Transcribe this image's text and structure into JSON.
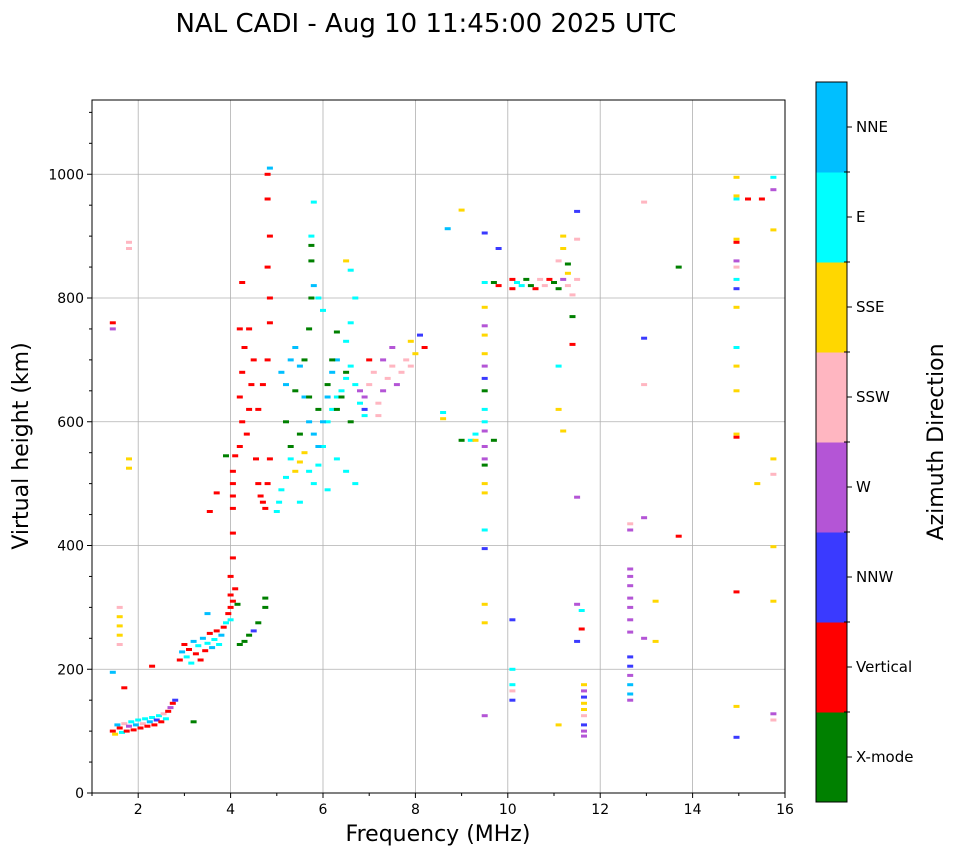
{
  "chart_data": {
    "type": "scatter",
    "title": "NAL CADI - Aug 10 11:45:00 2025 UTC",
    "xlabel": "Frequency (MHz)",
    "ylabel": "Virtual height (km)",
    "xlim": [
      1,
      16
    ],
    "ylim": [
      0,
      1120
    ],
    "xticks": [
      2,
      4,
      6,
      8,
      10,
      12,
      14,
      16
    ],
    "yticks": [
      0,
      200,
      400,
      600,
      800,
      1000
    ],
    "grid": true,
    "colorbar": {
      "label": "Azimuth Direction",
      "categories": [
        {
          "name": "X-mode",
          "color": "#008000"
        },
        {
          "name": "Vertical",
          "color": "#ff0000"
        },
        {
          "name": "NNW",
          "color": "#3a3aff"
        },
        {
          "name": "W",
          "color": "#b455d6"
        },
        {
          "name": "SSW",
          "color": "#ffb6c1"
        },
        {
          "name": "SSE",
          "color": "#ffd700"
        },
        {
          "name": "E",
          "color": "#00ffff"
        },
        {
          "name": "NNE",
          "color": "#00bfff"
        }
      ]
    },
    "points": [
      [
        1.45,
        100,
        1
      ],
      [
        1.5,
        95,
        5
      ],
      [
        1.55,
        110,
        7
      ],
      [
        1.6,
        105,
        1
      ],
      [
        1.65,
        98,
        6
      ],
      [
        1.7,
        112,
        4
      ],
      [
        1.75,
        100,
        1
      ],
      [
        1.8,
        108,
        3
      ],
      [
        1.85,
        115,
        6
      ],
      [
        1.9,
        102,
        1
      ],
      [
        1.95,
        110,
        7
      ],
      [
        2.0,
        118,
        6
      ],
      [
        2.05,
        105,
        1
      ],
      [
        2.1,
        112,
        4
      ],
      [
        2.15,
        120,
        6
      ],
      [
        2.2,
        108,
        1
      ],
      [
        2.25,
        115,
        7
      ],
      [
        2.3,
        122,
        6
      ],
      [
        2.35,
        110,
        1
      ],
      [
        2.4,
        118,
        2
      ],
      [
        2.45,
        125,
        6
      ],
      [
        2.5,
        115,
        1
      ],
      [
        2.55,
        128,
        4
      ],
      [
        2.6,
        120,
        6
      ],
      [
        2.65,
        132,
        1
      ],
      [
        2.7,
        138,
        3
      ],
      [
        2.75,
        145,
        1
      ],
      [
        2.8,
        150,
        2
      ],
      [
        1.45,
        760,
        1
      ],
      [
        1.45,
        750,
        3
      ],
      [
        1.45,
        195,
        7
      ],
      [
        1.6,
        255,
        5
      ],
      [
        1.6,
        270,
        5
      ],
      [
        1.6,
        285,
        5
      ],
      [
        1.6,
        240,
        4
      ],
      [
        1.6,
        300,
        4
      ],
      [
        1.8,
        540,
        5
      ],
      [
        1.8,
        525,
        5
      ],
      [
        1.8,
        890,
        4
      ],
      [
        1.8,
        880,
        4
      ],
      [
        1.7,
        170,
        1
      ],
      [
        2.3,
        205,
        1
      ],
      [
        3.2,
        115,
        0
      ],
      [
        2.9,
        215,
        1
      ],
      [
        2.95,
        228,
        7
      ],
      [
        3.0,
        240,
        1
      ],
      [
        3.05,
        220,
        6
      ],
      [
        3.1,
        232,
        1
      ],
      [
        3.15,
        210,
        6
      ],
      [
        3.2,
        245,
        7
      ],
      [
        3.25,
        225,
        1
      ],
      [
        3.3,
        238,
        6
      ],
      [
        3.35,
        215,
        1
      ],
      [
        3.4,
        250,
        7
      ],
      [
        3.45,
        230,
        1
      ],
      [
        3.5,
        242,
        6
      ],
      [
        3.55,
        258,
        1
      ],
      [
        3.6,
        235,
        7
      ],
      [
        3.65,
        248,
        6
      ],
      [
        3.7,
        262,
        1
      ],
      [
        3.75,
        240,
        6
      ],
      [
        3.8,
        255,
        7
      ],
      [
        3.85,
        268,
        1
      ],
      [
        3.9,
        275,
        6
      ],
      [
        3.95,
        290,
        1
      ],
      [
        4.0,
        300,
        1
      ],
      [
        4.0,
        320,
        1
      ],
      [
        4.0,
        280,
        6
      ],
      [
        4.05,
        310,
        1
      ],
      [
        4.1,
        330,
        1
      ],
      [
        4.15,
        305,
        0
      ],
      [
        4.2,
        240,
        0
      ],
      [
        4.3,
        245,
        0
      ],
      [
        4.4,
        255,
        0
      ],
      [
        4.5,
        262,
        2
      ],
      [
        4.6,
        275,
        0
      ],
      [
        4.75,
        315,
        0
      ],
      [
        4.75,
        300,
        0
      ],
      [
        3.5,
        290,
        7
      ],
      [
        4.0,
        350,
        1
      ],
      [
        4.05,
        380,
        1
      ],
      [
        4.05,
        420,
        1
      ],
      [
        4.05,
        460,
        1
      ],
      [
        4.05,
        480,
        1
      ],
      [
        4.05,
        500,
        1
      ],
      [
        4.05,
        520,
        1
      ],
      [
        4.1,
        545,
        1
      ],
      [
        3.9,
        545,
        0
      ],
      [
        3.7,
        485,
        1
      ],
      [
        3.55,
        455,
        1
      ],
      [
        4.2,
        560,
        1
      ],
      [
        4.25,
        600,
        1
      ],
      [
        4.2,
        640,
        1
      ],
      [
        4.25,
        680,
        1
      ],
      [
        4.3,
        720,
        1
      ],
      [
        4.2,
        750,
        1
      ],
      [
        4.35,
        580,
        1
      ],
      [
        4.4,
        620,
        1
      ],
      [
        4.45,
        660,
        1
      ],
      [
        4.5,
        700,
        1
      ],
      [
        4.55,
        540,
        1
      ],
      [
        4.6,
        500,
        1
      ],
      [
        4.65,
        480,
        1
      ],
      [
        4.7,
        470,
        1
      ],
      [
        4.75,
        460,
        1
      ],
      [
        4.8,
        500,
        1
      ],
      [
        4.85,
        540,
        1
      ],
      [
        4.6,
        620,
        1
      ],
      [
        4.7,
        660,
        1
      ],
      [
        4.8,
        700,
        1
      ],
      [
        4.85,
        760,
        1
      ],
      [
        4.85,
        800,
        1
      ],
      [
        4.8,
        850,
        1
      ],
      [
        4.85,
        900,
        1
      ],
      [
        4.8,
        960,
        1
      ],
      [
        4.8,
        1000,
        1
      ],
      [
        4.85,
        1010,
        7
      ],
      [
        4.25,
        825,
        1
      ],
      [
        4.4,
        750,
        1
      ],
      [
        5.0,
        455,
        6
      ],
      [
        5.05,
        470,
        6
      ],
      [
        5.1,
        490,
        6
      ],
      [
        5.2,
        510,
        6
      ],
      [
        5.3,
        540,
        6
      ],
      [
        5.4,
        520,
        5
      ],
      [
        5.5,
        535,
        5
      ],
      [
        5.6,
        550,
        5
      ],
      [
        5.7,
        520,
        6
      ],
      [
        5.8,
        500,
        6
      ],
      [
        5.9,
        530,
        6
      ],
      [
        6.0,
        560,
        6
      ],
      [
        6.1,
        600,
        6
      ],
      [
        6.2,
        620,
        6
      ],
      [
        6.3,
        640,
        6
      ],
      [
        6.4,
        650,
        6
      ],
      [
        6.5,
        670,
        6
      ],
      [
        6.6,
        690,
        6
      ],
      [
        6.7,
        660,
        6
      ],
      [
        6.8,
        630,
        6
      ],
      [
        6.9,
        610,
        6
      ],
      [
        6.3,
        540,
        6
      ],
      [
        6.5,
        520,
        6
      ],
      [
        6.7,
        500,
        6
      ],
      [
        6.1,
        490,
        6
      ],
      [
        5.5,
        470,
        6
      ],
      [
        5.1,
        680,
        7
      ],
      [
        5.2,
        660,
        7
      ],
      [
        5.3,
        700,
        7
      ],
      [
        5.4,
        720,
        7
      ],
      [
        5.5,
        690,
        7
      ],
      [
        5.6,
        640,
        7
      ],
      [
        5.7,
        600,
        7
      ],
      [
        5.8,
        580,
        7
      ],
      [
        5.9,
        560,
        7
      ],
      [
        6.0,
        600,
        7
      ],
      [
        6.1,
        640,
        7
      ],
      [
        6.2,
        680,
        7
      ],
      [
        6.3,
        700,
        7
      ],
      [
        6.5,
        730,
        6
      ],
      [
        6.6,
        760,
        6
      ],
      [
        6.7,
        800,
        6
      ],
      [
        6.6,
        845,
        6
      ],
      [
        6.5,
        860,
        5
      ],
      [
        6.0,
        780,
        6
      ],
      [
        5.9,
        800,
        6
      ],
      [
        5.8,
        820,
        7
      ],
      [
        5.75,
        900,
        6
      ],
      [
        5.8,
        955,
        6
      ],
      [
        5.2,
        600,
        0
      ],
      [
        5.4,
        650,
        0
      ],
      [
        5.6,
        700,
        0
      ],
      [
        5.7,
        750,
        0
      ],
      [
        5.75,
        800,
        0
      ],
      [
        5.75,
        860,
        0
      ],
      [
        5.75,
        885,
        0
      ],
      [
        5.9,
        620,
        0
      ],
      [
        6.1,
        660,
        0
      ],
      [
        6.2,
        700,
        0
      ],
      [
        6.3,
        620,
        0
      ],
      [
        6.4,
        640,
        0
      ],
      [
        6.5,
        680,
        0
      ],
      [
        6.6,
        600,
        0
      ],
      [
        6.3,
        745,
        0
      ],
      [
        5.7,
        640,
        0
      ],
      [
        5.3,
        560,
        0
      ],
      [
        5.5,
        580,
        0
      ],
      [
        6.8,
        650,
        3
      ],
      [
        6.9,
        640,
        3
      ],
      [
        7.0,
        660,
        4
      ],
      [
        7.1,
        680,
        4
      ],
      [
        7.2,
        630,
        4
      ],
      [
        7.3,
        650,
        3
      ],
      [
        7.4,
        670,
        4
      ],
      [
        7.5,
        690,
        4
      ],
      [
        7.6,
        660,
        3
      ],
      [
        7.7,
        680,
        4
      ],
      [
        7.8,
        700,
        4
      ],
      [
        7.9,
        690,
        4
      ],
      [
        8.0,
        710,
        5
      ],
      [
        7.9,
        730,
        5
      ],
      [
        8.1,
        740,
        2
      ],
      [
        8.2,
        720,
        1
      ],
      [
        7.5,
        720,
        3
      ],
      [
        7.3,
        700,
        3
      ],
      [
        7.0,
        700,
        1
      ],
      [
        6.9,
        620,
        2
      ],
      [
        7.2,
        610,
        4
      ],
      [
        8.6,
        615,
        6
      ],
      [
        8.6,
        605,
        5
      ],
      [
        8.7,
        912,
        7
      ],
      [
        9.0,
        942,
        5
      ],
      [
        9.0,
        570,
        0
      ],
      [
        9.2,
        570,
        6
      ],
      [
        9.3,
        580,
        6
      ],
      [
        9.3,
        570,
        5
      ],
      [
        9.5,
        585,
        3
      ],
      [
        9.5,
        560,
        3
      ],
      [
        9.5,
        540,
        3
      ],
      [
        9.5,
        530,
        0
      ],
      [
        9.5,
        500,
        5
      ],
      [
        9.5,
        485,
        5
      ],
      [
        9.5,
        600,
        6
      ],
      [
        9.5,
        620,
        6
      ],
      [
        9.5,
        650,
        0
      ],
      [
        9.5,
        670,
        2
      ],
      [
        9.5,
        690,
        3
      ],
      [
        9.5,
        710,
        5
      ],
      [
        9.5,
        740,
        5
      ],
      [
        9.5,
        755,
        3
      ],
      [
        9.5,
        785,
        5
      ],
      [
        9.5,
        825,
        6
      ],
      [
        9.5,
        905,
        2
      ],
      [
        9.5,
        425,
        6
      ],
      [
        9.5,
        395,
        2
      ],
      [
        9.5,
        305,
        5
      ],
      [
        9.5,
        275,
        5
      ],
      [
        9.5,
        125,
        3
      ],
      [
        9.7,
        570,
        0
      ],
      [
        9.7,
        825,
        0
      ],
      [
        9.8,
        880,
        2
      ],
      [
        9.8,
        820,
        1
      ],
      [
        10.1,
        815,
        1
      ],
      [
        10.1,
        830,
        1
      ],
      [
        10.2,
        825,
        6
      ],
      [
        10.3,
        820,
        6
      ],
      [
        10.4,
        830,
        0
      ],
      [
        10.5,
        820,
        0
      ],
      [
        10.6,
        815,
        1
      ],
      [
        10.7,
        830,
        4
      ],
      [
        10.8,
        820,
        4
      ],
      [
        10.9,
        830,
        1
      ],
      [
        11.0,
        825,
        0
      ],
      [
        11.1,
        815,
        0
      ],
      [
        11.2,
        830,
        3
      ],
      [
        11.3,
        820,
        4
      ],
      [
        11.3,
        840,
        5
      ],
      [
        11.4,
        805,
        4
      ],
      [
        11.5,
        830,
        4
      ],
      [
        11.1,
        860,
        4
      ],
      [
        11.2,
        880,
        5
      ],
      [
        11.2,
        900,
        5
      ],
      [
        11.3,
        855,
        0
      ],
      [
        10.1,
        280,
        2
      ],
      [
        10.1,
        200,
        6
      ],
      [
        10.1,
        175,
        6
      ],
      [
        10.1,
        150,
        2
      ],
      [
        10.1,
        165,
        4
      ],
      [
        11.1,
        690,
        6
      ],
      [
        11.1,
        620,
        5
      ],
      [
        11.2,
        585,
        5
      ],
      [
        11.1,
        110,
        5
      ],
      [
        11.4,
        770,
        0
      ],
      [
        11.4,
        725,
        1
      ],
      [
        11.5,
        940,
        2
      ],
      [
        11.5,
        895,
        4
      ],
      [
        11.5,
        478,
        3
      ],
      [
        11.5,
        305,
        3
      ],
      [
        11.6,
        295,
        6
      ],
      [
        11.6,
        265,
        1
      ],
      [
        11.5,
        245,
        2
      ],
      [
        11.65,
        175,
        5
      ],
      [
        11.65,
        165,
        3
      ],
      [
        11.65,
        155,
        2
      ],
      [
        11.65,
        145,
        5
      ],
      [
        11.65,
        135,
        5
      ],
      [
        11.65,
        125,
        4
      ],
      [
        11.65,
        110,
        2
      ],
      [
        11.65,
        100,
        3
      ],
      [
        11.65,
        92,
        3
      ],
      [
        12.65,
        150,
        3
      ],
      [
        12.65,
        160,
        7
      ],
      [
        12.65,
        175,
        7
      ],
      [
        12.65,
        190,
        3
      ],
      [
        12.65,
        205,
        2
      ],
      [
        12.65,
        220,
        2
      ],
      [
        12.65,
        260,
        3
      ],
      [
        12.65,
        280,
        3
      ],
      [
        12.65,
        300,
        3
      ],
      [
        12.65,
        315,
        3
      ],
      [
        12.65,
        335,
        3
      ],
      [
        12.65,
        350,
        3
      ],
      [
        12.65,
        362,
        3
      ],
      [
        12.65,
        425,
        3
      ],
      [
        12.65,
        435,
        4
      ],
      [
        12.95,
        445,
        3
      ],
      [
        12.95,
        250,
        3
      ],
      [
        12.95,
        735,
        2
      ],
      [
        12.95,
        955,
        4
      ],
      [
        12.95,
        660,
        4
      ],
      [
        13.2,
        310,
        5
      ],
      [
        13.2,
        245,
        5
      ],
      [
        13.7,
        850,
        0
      ],
      [
        13.7,
        415,
        1
      ],
      [
        14.95,
        995,
        5
      ],
      [
        14.95,
        960,
        6
      ],
      [
        14.95,
        965,
        5
      ],
      [
        14.95,
        895,
        5
      ],
      [
        14.95,
        890,
        1
      ],
      [
        14.95,
        860,
        3
      ],
      [
        14.95,
        850,
        4
      ],
      [
        14.95,
        830,
        6
      ],
      [
        14.95,
        815,
        2
      ],
      [
        14.95,
        785,
        5
      ],
      [
        14.95,
        720,
        6
      ],
      [
        14.95,
        690,
        5
      ],
      [
        14.95,
        650,
        5
      ],
      [
        14.95,
        580,
        5
      ],
      [
        14.95,
        575,
        1
      ],
      [
        14.95,
        325,
        1
      ],
      [
        14.95,
        140,
        5
      ],
      [
        14.95,
        90,
        2
      ],
      [
        15.2,
        960,
        1
      ],
      [
        15.5,
        960,
        1
      ],
      [
        15.4,
        500,
        5
      ],
      [
        15.75,
        995,
        6
      ],
      [
        15.75,
        975,
        3
      ],
      [
        15.75,
        910,
        5
      ],
      [
        15.75,
        540,
        5
      ],
      [
        15.75,
        515,
        4
      ],
      [
        15.75,
        398,
        5
      ],
      [
        15.75,
        310,
        5
      ],
      [
        15.75,
        128,
        3
      ],
      [
        15.75,
        118,
        4
      ]
    ]
  }
}
